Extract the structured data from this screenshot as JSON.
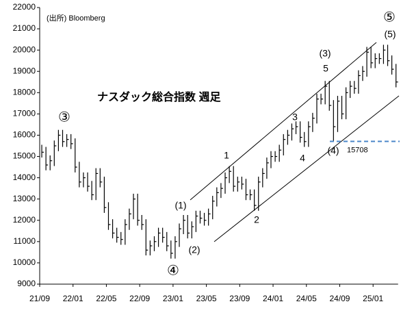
{
  "chart_data": {
    "type": "ohlc",
    "title": "ナスダック総合指数 週足",
    "source": "(出所) Bloomberg",
    "categories": [
      "21/09",
      null,
      null,
      null,
      null,
      null,
      null,
      null,
      "22/01",
      null,
      null,
      null,
      null,
      null,
      null,
      null,
      "22/05",
      null,
      null,
      null,
      null,
      null,
      null,
      null,
      "22/09",
      null,
      null,
      null,
      null,
      null,
      null,
      null,
      "23/01",
      null,
      null,
      null,
      null,
      null,
      null,
      null,
      "23/05",
      null,
      null,
      null,
      null,
      null,
      null,
      null,
      "23/09",
      null,
      null,
      null,
      null,
      null,
      null,
      null,
      "24/01",
      null,
      null,
      null,
      null,
      null,
      null,
      null,
      "24/05",
      null,
      null,
      null,
      null,
      null,
      null,
      null,
      "24/09",
      null,
      null,
      null,
      null,
      null,
      null,
      null,
      "25/01",
      null,
      null,
      null,
      null,
      null
    ],
    "high": [
      15550,
      15450,
      15050,
      15750,
      16250,
      16250,
      16050,
      16050,
      15850,
      14750,
      14250,
      14250,
      13850,
      14450,
      14450,
      14050,
      12850,
      12050,
      11650,
      11450,
      12050,
      12550,
      13250,
      13250,
      12250,
      12050,
      11050,
      11250,
      11650,
      11650,
      11450,
      11050,
      11250,
      11850,
      12250,
      12250,
      11950,
      12450,
      12450,
      12350,
      12550,
      13150,
      13550,
      13750,
      14250,
      14550,
      14550,
      14050,
      14050,
      13950,
      13450,
      13450,
      14050,
      14450,
      14950,
      15250,
      15250,
      15550,
      16050,
      16250,
      16550,
      16650,
      16650,
      16150,
      16650,
      17050,
      17950,
      17950,
      18550,
      18550,
      17650,
      17850,
      17850,
      18250,
      18550,
      18550,
      19050,
      19250,
      20150,
      20150,
      19850,
      19850,
      20250,
      20250,
      19750,
      19350
    ],
    "low": [
      14950,
      14350,
      14350,
      14550,
      15250,
      15450,
      15450,
      15350,
      14250,
      13550,
      13550,
      13350,
      12950,
      12950,
      13550,
      12350,
      11550,
      11150,
      10950,
      10850,
      10850,
      11550,
      12050,
      11750,
      11550,
      10350,
      10350,
      10550,
      10750,
      10950,
      10550,
      10200,
      10200,
      10750,
      11350,
      11150,
      11150,
      11450,
      11850,
      11750,
      11750,
      12050,
      12650,
      13050,
      13250,
      13750,
      13350,
      13350,
      13450,
      12950,
      12950,
      12450,
      12450,
      13550,
      13950,
      14450,
      14750,
      14750,
      15050,
      15550,
      15750,
      16050,
      15650,
      15450,
      15450,
      16150,
      16550,
      17450,
      17450,
      17150,
      15708,
      16150,
      16750,
      16750,
      17750,
      17950,
      17950,
      18550,
      18750,
      19150,
      19150,
      19350,
      19350,
      19250,
      18850,
      18250
    ],
    "close": [
      15200,
      14600,
      14800,
      15500,
      16000,
      15700,
      15800,
      15600,
      14500,
      13800,
      14000,
      13600,
      13200,
      14200,
      13800,
      12600,
      11800,
      11400,
      11200,
      11100,
      11800,
      12300,
      13000,
      12000,
      11800,
      10600,
      10800,
      11000,
      11400,
      11200,
      10800,
      10450,
      11000,
      11600,
      12000,
      11400,
      11700,
      12200,
      12100,
      12000,
      12300,
      12900,
      13300,
      13500,
      14000,
      14300,
      13600,
      13800,
      13700,
      13200,
      13200,
      12700,
      13800,
      14200,
      14700,
      15000,
      15000,
      15300,
      15800,
      16000,
      16300,
      16400,
      15900,
      15700,
      16400,
      16800,
      17700,
      17700,
      18300,
      17400,
      16400,
      17600,
      17000,
      18000,
      18300,
      18200,
      18800,
      19000,
      19900,
      19400,
      19600,
      19600,
      20000,
      19500,
      19100,
      18500
    ],
    "color": "#000000",
    "ylim": [
      9000,
      22000
    ],
    "yticks": [
      9000,
      10000,
      11000,
      12000,
      13000,
      14000,
      15000,
      16000,
      17000,
      18000,
      19000,
      20000,
      21000,
      22000
    ],
    "support_level": 15708,
    "support_color": "#4a86c8",
    "annotations": [
      "③",
      "④",
      "⑤",
      "(5)",
      "(3)",
      "5",
      "3",
      "4",
      "(4)",
      "1",
      "2",
      "(1)",
      "(2)"
    ]
  }
}
